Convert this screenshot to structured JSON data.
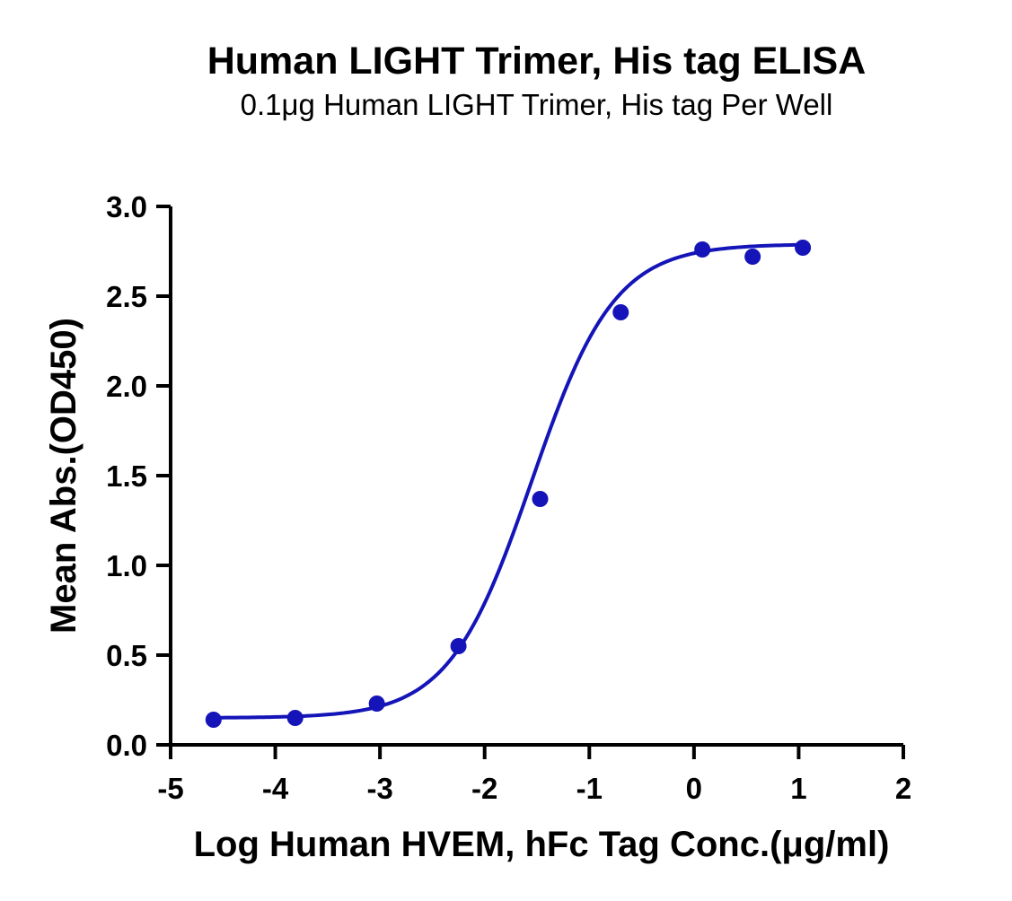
{
  "chart_data": {
    "type": "scatter",
    "title": "Human LIGHT Trimer, His tag ELISA",
    "subtitle": "0.1μg Human LIGHT Trimer, His tag Per Well",
    "xlabel": "Log Human HVEM, hFc Tag Conc.(μg/ml)",
    "ylabel": "Mean Abs.(OD450)",
    "xlim": [
      -5,
      2
    ],
    "ylim": [
      0,
      3
    ],
    "x_ticks": [
      "-5",
      "-4",
      "-3",
      "-2",
      "-1",
      "0",
      "1",
      "2"
    ],
    "y_ticks": [
      "0.0",
      "0.5",
      "1.0",
      "1.5",
      "2.0",
      "2.5",
      "3.0"
    ],
    "grid": false,
    "legend": "none",
    "series": [
      {
        "color": "#1414b8",
        "points": [
          {
            "x": -4.59,
            "y": 0.14
          },
          {
            "x": -3.81,
            "y": 0.15
          },
          {
            "x": -3.03,
            "y": 0.23
          },
          {
            "x": -2.25,
            "y": 0.55
          },
          {
            "x": -1.47,
            "y": 1.37
          },
          {
            "x": -0.7,
            "y": 2.41
          },
          {
            "x": 0.08,
            "y": 2.76
          },
          {
            "x": 0.56,
            "y": 2.72
          },
          {
            "x": 1.04,
            "y": 2.77
          }
        ],
        "fit": {
          "model": "4PL",
          "bottom": 0.15,
          "top": 2.79,
          "logEC50": -1.55,
          "hill": 1.1
        }
      }
    ]
  }
}
